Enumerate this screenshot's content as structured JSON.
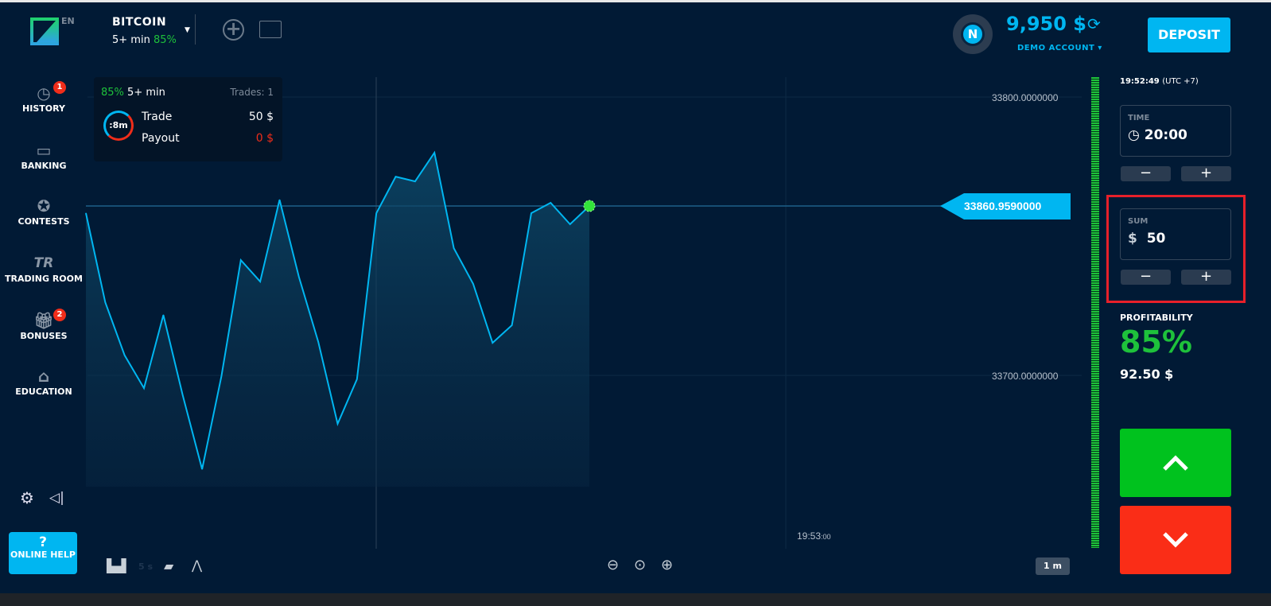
{
  "header": {
    "lang": "EN",
    "asset": "BITCOIN",
    "duration": "5+ min",
    "profit": "85%",
    "balance": "9,950 $",
    "account": "DEMO ACCOUNT",
    "account_caret": "▾",
    "avatar_letter": "N",
    "deposit": "DEPOSIT"
  },
  "sidebar": {
    "items": [
      {
        "label": "HISTORY",
        "icon": "history-icon",
        "badge": "1"
      },
      {
        "label": "BANKING",
        "icon": "wallet-icon"
      },
      {
        "label": "CONTESTS",
        "icon": "star-icon"
      },
      {
        "label": "TRADING ROOM",
        "icon": "tr-icon",
        "glyph": "TR"
      },
      {
        "label": "BONUSES",
        "icon": "gift-icon",
        "badge": "2"
      },
      {
        "label": "EDUCATION",
        "icon": "graduation-cap-icon"
      }
    ],
    "help_q": "?",
    "help": "ONLINE HELP"
  },
  "trade_panel": {
    "profit": "85%",
    "duration": "5+ min",
    "trades": "Trades: 1",
    "timer": ":8m",
    "trade_label": "Trade",
    "trade_value": "50 $",
    "payout_label": "Payout",
    "payout_value": "0 $"
  },
  "chart": {
    "y_labels": [
      "33800.0000000",
      "33700.0000000"
    ],
    "current_price": "33860.9590000",
    "time_label": "19:53",
    "time_seconds": ":00",
    "interval": "1 m",
    "tick_speed": "5 s",
    "line_color": "#00b6f1"
  },
  "chart_data": {
    "type": "area",
    "y_ticks": [
      33800,
      33700
    ],
    "current": 33860.959,
    "values": [
      33858.4,
      33826.4,
      33807.3,
      33795.5,
      33821.8,
      33793.0,
      33766.4,
      33799.8,
      33841.5,
      33833.8,
      33863.2,
      33835.5,
      33812.1,
      33782.7,
      33798.7,
      33858.4,
      33871.5,
      33869.8,
      33880.1,
      33845.8,
      33833.0,
      33811.8,
      33818.1,
      33858.4,
      33862.1,
      33854.4,
      33860.959
    ]
  },
  "right": {
    "clock": "19:52:49",
    "tz": "(UTC +7)",
    "time_label": "TIME",
    "time_value": "20:00",
    "sum_label": "SUM",
    "sum_currency": "$",
    "sum_value": "50",
    "minus": "−",
    "plus": "+",
    "profit_label": "PROFITABILITY",
    "profit_pct": "85%",
    "profit_amount": "92.50 $",
    "up_color": "#00c21e",
    "down_color": "#fa2d17"
  }
}
